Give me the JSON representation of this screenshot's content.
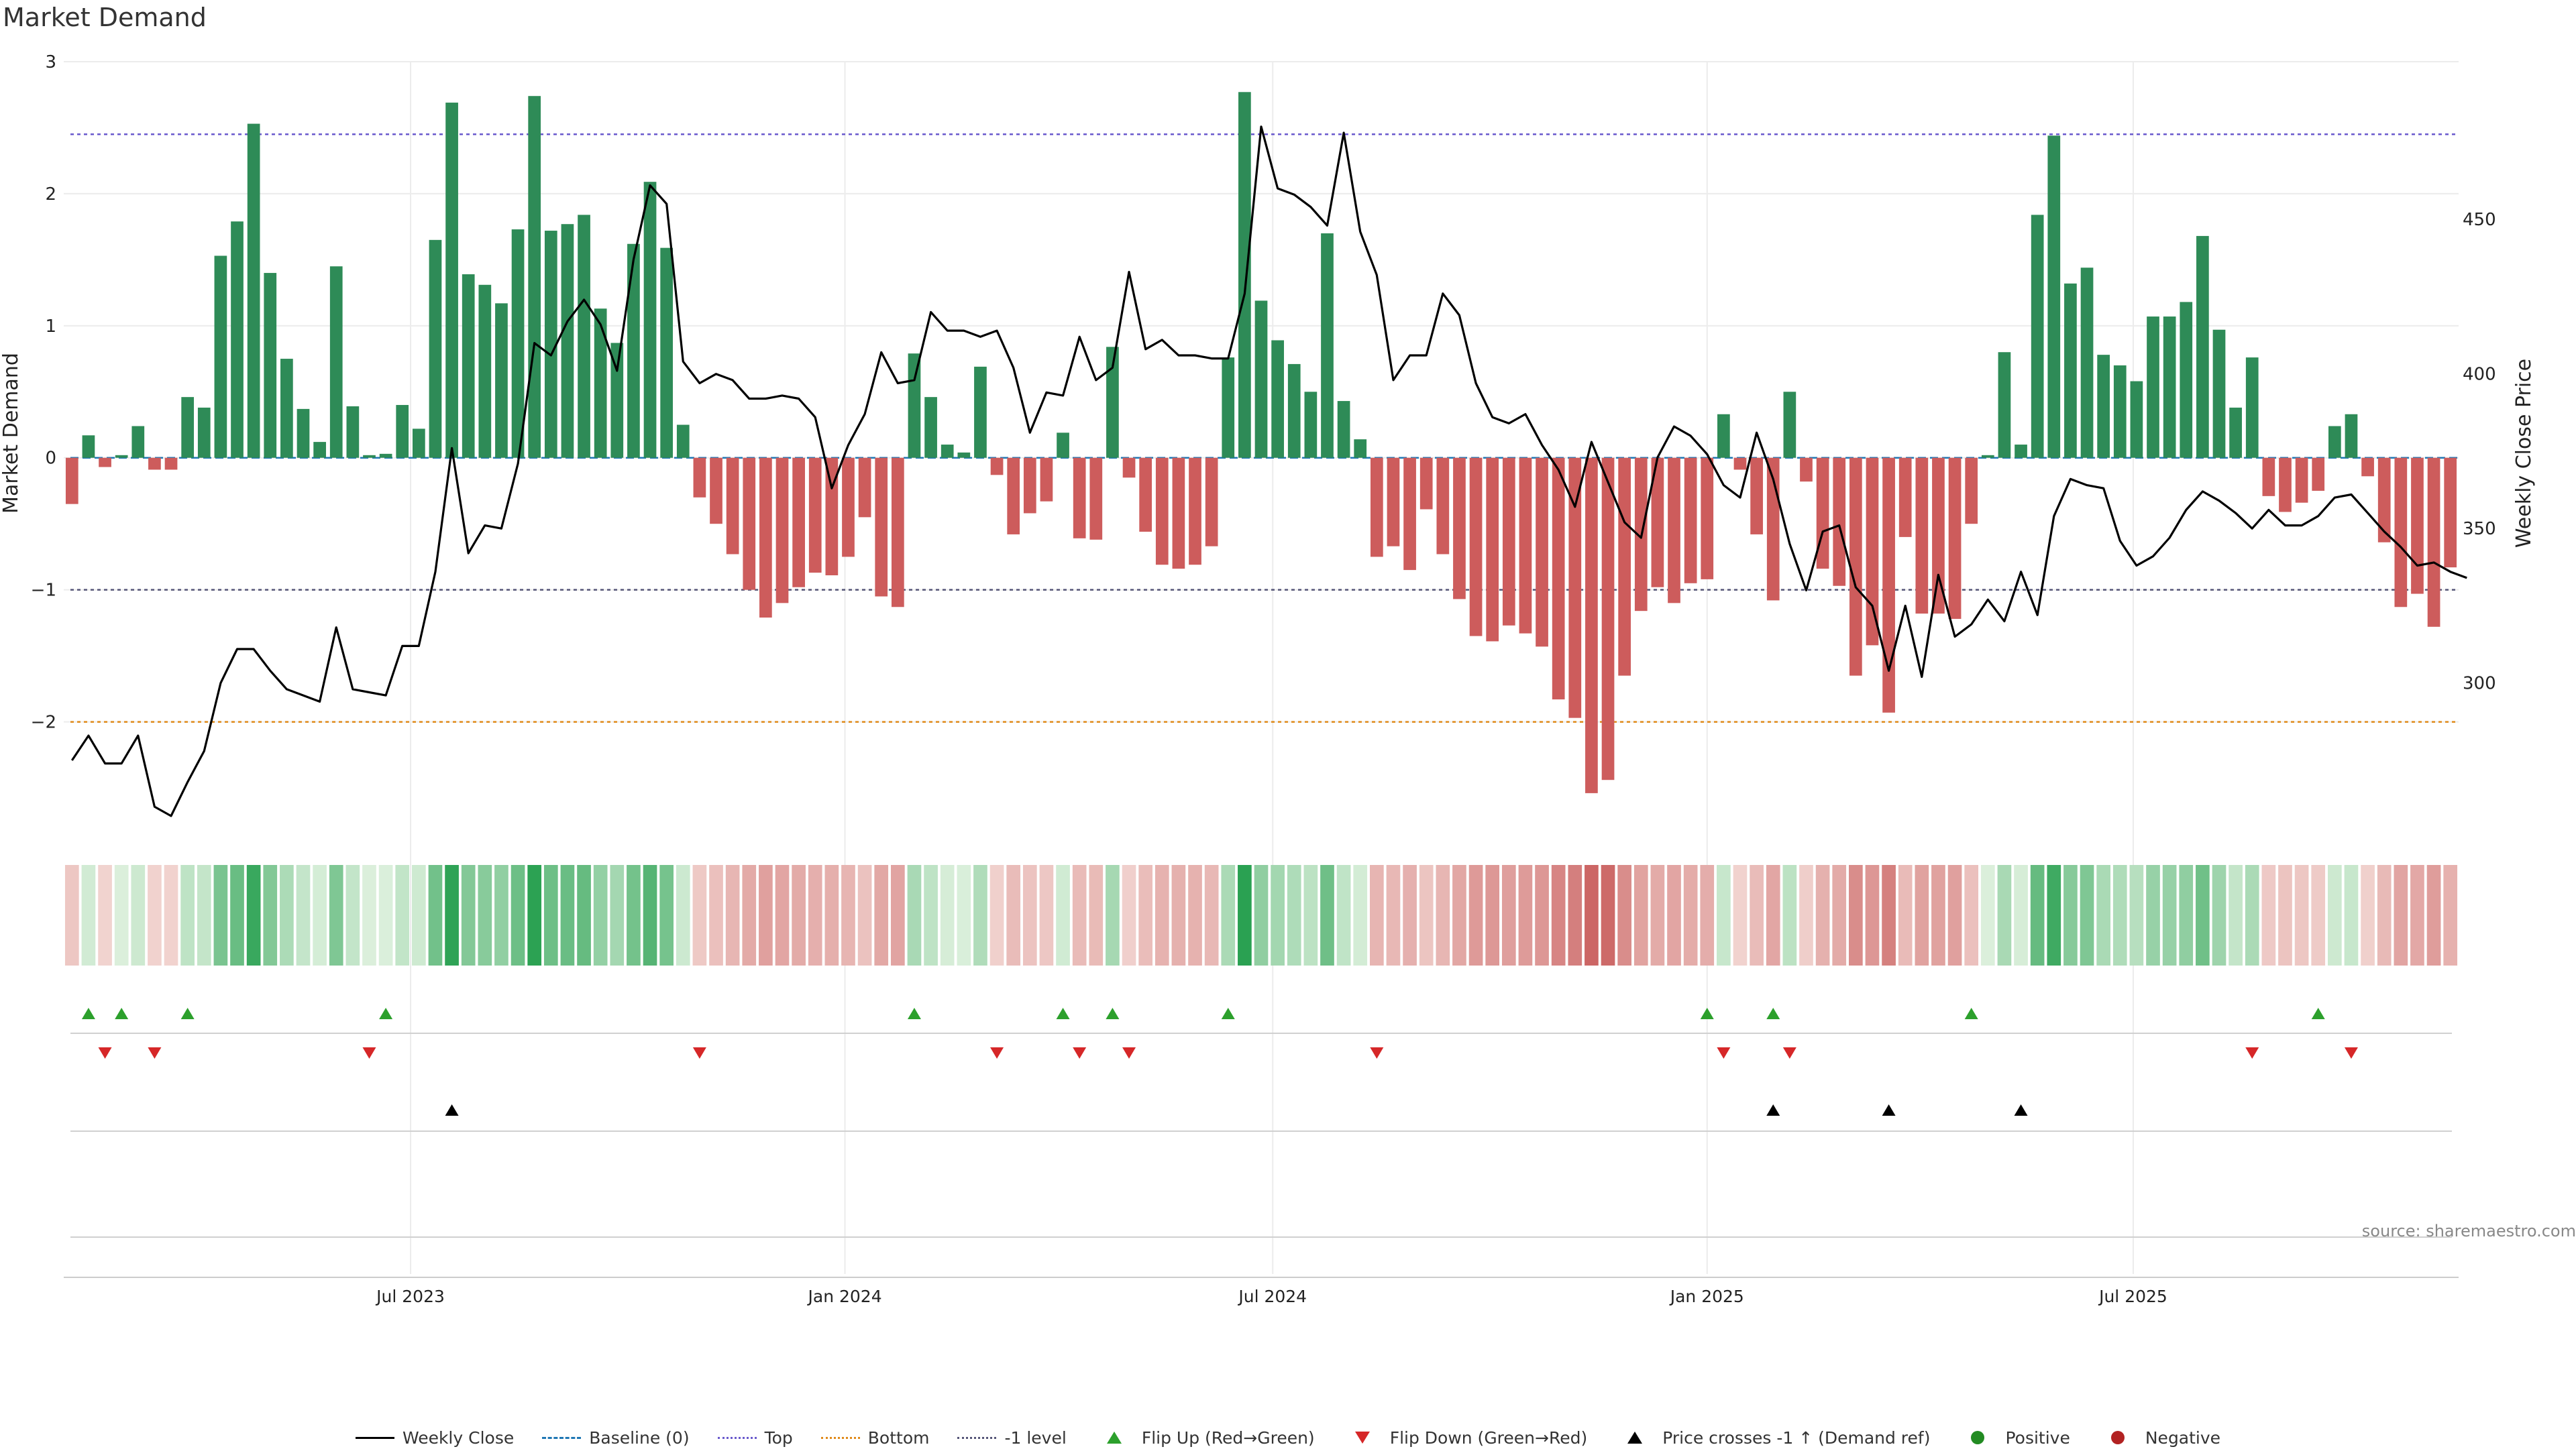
{
  "title": "Market Demand",
  "source": "source: sharemaestro.com",
  "colors": {
    "positive": "#2e8b57",
    "negative": "#cd5c5c",
    "line": "#000000",
    "top": "#6a5acd",
    "bottom": "#e08a1a",
    "minus1": "#555577",
    "flip_up": "#2ca02c",
    "flip_down": "#d62728"
  },
  "legend": [
    {
      "label": "Weekly Close",
      "symbol": "line"
    },
    {
      "label": "Baseline (0)",
      "symbol": "dash"
    },
    {
      "label": "Top",
      "symbol": "dot-top"
    },
    {
      "label": "Bottom",
      "symbol": "dot-bottom"
    },
    {
      "label": "-1 level",
      "symbol": "dot-minus1"
    },
    {
      "label": "Flip Up (Red→Green)",
      "symbol": "tri-up"
    },
    {
      "label": "Flip Down (Green→Red)",
      "symbol": "tri-down"
    },
    {
      "label": "Price crosses -1 ↑ (Demand ref)",
      "symbol": "tri-up-black"
    },
    {
      "label": "Positive",
      "symbol": "circle-green"
    },
    {
      "label": "Negative",
      "symbol": "circle-red"
    }
  ],
  "chart_data": {
    "type": "bar",
    "title": "Market Demand",
    "ylabel": "Market Demand",
    "y2label": "Weekly Close Price",
    "ylim": [
      -2.83,
      3.0
    ],
    "y2lim": [
      252,
      501
    ],
    "yticks": [
      3,
      2,
      1,
      0,
      -1,
      -2
    ],
    "ytick_labels": [
      "3",
      "2",
      "1",
      "0",
      "−1",
      "−2"
    ],
    "y2ticks": [
      450,
      400,
      350,
      300
    ],
    "y2tick_labels": [
      "450",
      "400",
      "350",
      "300"
    ],
    "xticks": [
      {
        "label": "Jul 2023",
        "index": 21
      },
      {
        "label": "Jan 2024",
        "index": 47.3
      },
      {
        "label": "Jul 2024",
        "index": 73.2
      },
      {
        "label": "Jan 2025",
        "index": 99.5
      },
      {
        "label": "Jul 2025",
        "index": 125.3
      }
    ],
    "reference_lines": {
      "top": 2.45,
      "bottom": -2.0,
      "minus1": -1.0,
      "baseline": 0
    },
    "demand": [
      -0.35,
      0.17,
      -0.07,
      0.02,
      0.24,
      -0.09,
      -0.09,
      0.46,
      0.38,
      1.53,
      1.79,
      2.53,
      1.4,
      0.75,
      0.37,
      0.12,
      1.45,
      0.39,
      0.02,
      0.03,
      0.4,
      0.22,
      1.65,
      2.69,
      1.39,
      1.31,
      1.17,
      1.73,
      2.74,
      1.72,
      1.77,
      1.84,
      1.13,
      0.87,
      1.62,
      2.09,
      1.59,
      0.25,
      -0.3,
      -0.5,
      -0.73,
      -1.0,
      -1.21,
      -1.1,
      -0.98,
      -0.87,
      -0.89,
      -0.75,
      -0.45,
      -1.05,
      -1.13,
      0.79,
      0.46,
      0.1,
      0.04,
      0.69,
      -0.13,
      -0.58,
      -0.42,
      -0.33,
      0.19,
      -0.61,
      -0.62,
      0.84,
      -0.15,
      -0.56,
      -0.81,
      -0.84,
      -0.81,
      -0.67,
      0.76,
      2.77,
      1.19,
      0.89,
      0.71,
      0.5,
      1.7,
      0.43,
      0.14,
      -0.75,
      -0.67,
      -0.85,
      -0.39,
      -0.73,
      -1.07,
      -1.35,
      -1.39,
      -1.27,
      -1.33,
      -1.43,
      -1.83,
      -1.97,
      -2.54,
      -2.44,
      -1.65,
      -1.16,
      -0.98,
      -1.1,
      -0.95,
      -0.92,
      0.33,
      -0.09,
      -0.58,
      -1.08,
      0.5,
      -0.18,
      -0.84,
      -0.97,
      -1.65,
      -1.42,
      -1.93,
      -0.6,
      -1.18,
      -1.18,
      -1.22,
      -0.5,
      0.02,
      0.8,
      0.1,
      1.84,
      2.44,
      1.32,
      1.44,
      0.78,
      0.7,
      0.58,
      1.07,
      1.07,
      1.18,
      1.68,
      0.97,
      0.38,
      0.76,
      -0.29,
      -0.41,
      -0.34,
      -0.25,
      0.24,
      0.33,
      -0.14,
      -0.64,
      -1.13,
      -1.03,
      -1.28,
      -0.83
    ],
    "weekly_close": [
      275,
      283,
      274,
      274,
      283,
      260,
      257,
      268,
      278,
      300,
      311,
      311,
      304,
      298,
      296,
      294,
      318,
      298,
      297,
      296,
      312,
      312,
      336,
      376,
      342,
      351,
      350,
      371,
      410,
      406,
      417,
      424,
      416,
      401,
      437,
      461,
      455,
      404,
      397,
      400,
      398,
      392,
      392,
      393,
      392,
      386,
      363,
      377,
      387,
      407,
      397,
      398,
      420,
      414,
      414,
      412,
      414,
      402,
      381,
      394,
      393,
      412,
      398,
      402,
      433,
      408,
      411,
      406,
      406,
      405,
      405,
      426,
      480,
      460,
      458,
      454,
      448,
      478,
      446,
      432,
      398,
      406,
      406,
      426,
      419,
      397,
      386,
      384,
      387,
      377,
      369,
      357,
      378,
      365,
      352,
      347,
      373,
      383,
      380,
      374,
      364,
      360,
      381,
      366,
      345,
      330,
      349,
      351,
      331,
      325,
      304,
      325,
      302,
      335,
      315,
      319,
      327,
      320,
      336,
      322,
      354,
      366,
      364,
      363,
      346,
      338,
      341,
      347,
      356,
      362,
      359,
      355,
      350,
      356,
      351,
      351,
      354,
      360,
      361,
      355,
      349,
      344,
      338,
      339,
      336,
      334
    ]
  },
  "panels": {
    "flip_up": [
      1,
      3,
      7,
      19,
      51,
      60,
      63,
      70,
      99,
      103,
      115,
      136
    ],
    "flip_down": [
      2,
      5,
      18,
      38,
      56,
      61,
      64,
      79,
      100,
      104,
      132,
      138
    ],
    "price_crosses": [
      23,
      103,
      110,
      118
    ]
  }
}
